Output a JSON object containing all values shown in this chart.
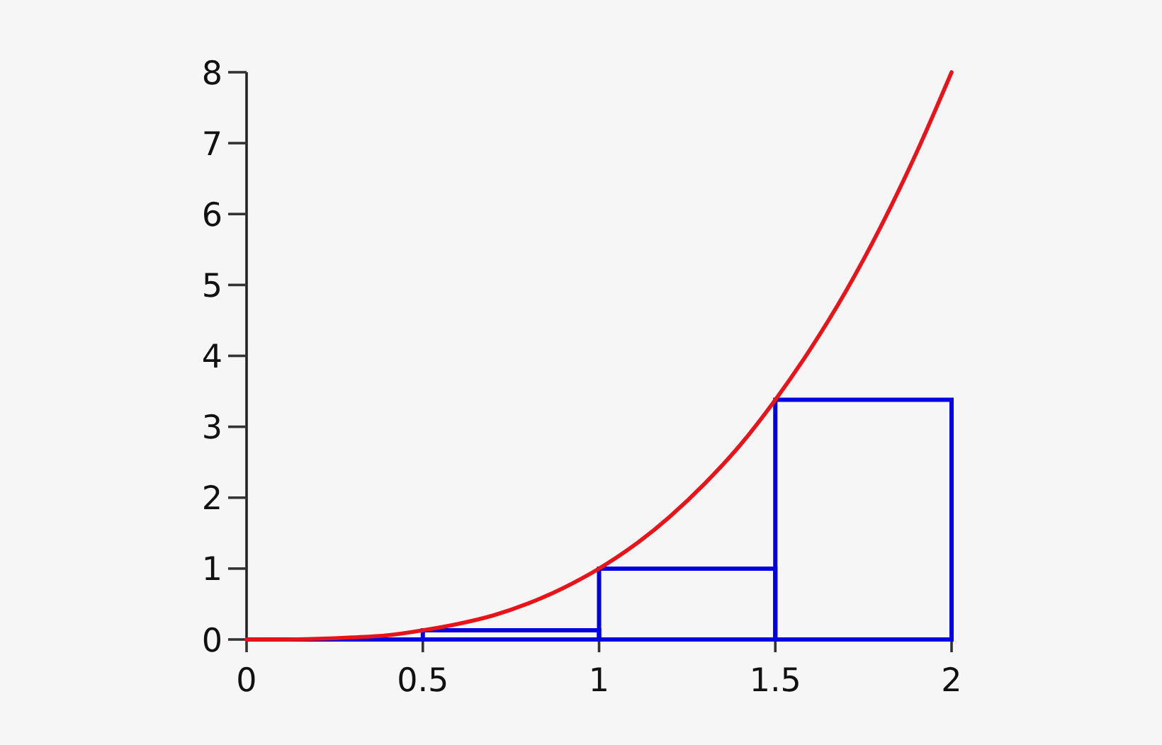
{
  "chart_data": {
    "type": "histogram",
    "xlim": [
      0,
      2
    ],
    "ylim": [
      0,
      8
    ],
    "xticks": [
      0,
      0.5,
      1,
      1.5,
      2
    ],
    "yticks": [
      0,
      1,
      2,
      3,
      4,
      5,
      6,
      7,
      8
    ],
    "series": [
      {
        "color": "#0000e0",
        "bins": [
          0,
          0.5,
          1,
          1.5,
          2
        ],
        "values": [
          0,
          0.13,
          1,
          3.38
        ]
      },
      {
        "type": "line",
        "color": "#e8141a",
        "x": [
          0,
          0.1,
          0.2,
          0.3,
          0.4,
          0.5,
          0.6,
          0.7,
          0.8,
          0.9,
          1,
          1.1,
          1.2,
          1.3,
          1.4,
          1.5,
          1.6,
          1.7,
          1.8,
          1.9,
          2
        ],
        "values": [
          0,
          0,
          0.01,
          0.03,
          0.06,
          0.13,
          0.22,
          0.34,
          0.51,
          0.73,
          1,
          1.33,
          1.73,
          2.2,
          2.74,
          3.38,
          4.1,
          4.91,
          5.83,
          6.86,
          8
        ]
      }
    ]
  }
}
